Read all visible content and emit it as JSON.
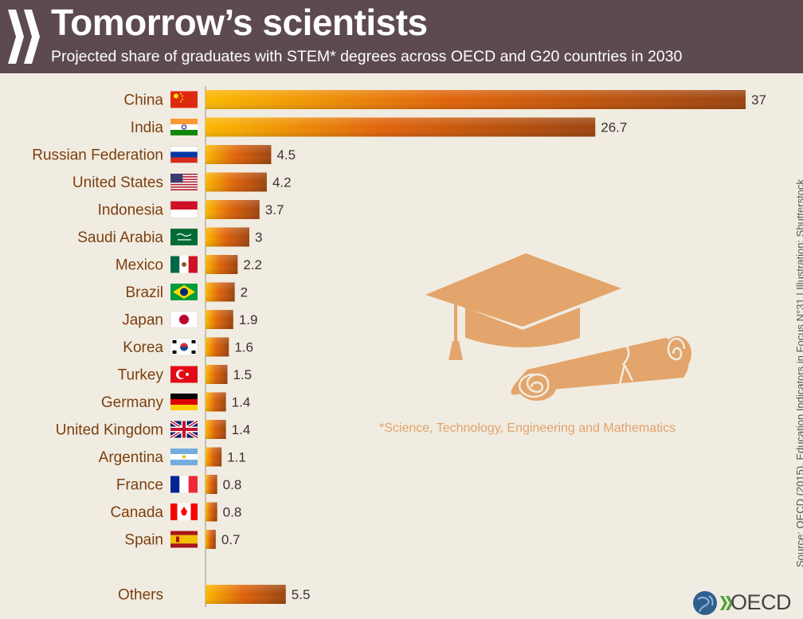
{
  "header": {
    "title": "Tomorrow’s scientists",
    "subtitle": "Projected share of graduates with STEM* degrees across OECD and G20 countries in 2030"
  },
  "note": "*Science, Technology, Engineering and Mathematics",
  "source": "Source: OECD (2015), Education Indicators in Focus N°31 | Illustration: Shutterstock",
  "logo": {
    "text": "OECD"
  },
  "colors": {
    "header_bg": "#5d4a4f",
    "page_bg": "#f1ece1",
    "bar_start": "#fbb800",
    "bar_mid": "#e0640a",
    "bar_end": "#9c4410",
    "label_color": "#7b3f10",
    "illustration": "#e3a56b"
  },
  "chart_data": {
    "type": "bar",
    "orientation": "horizontal",
    "categories": [
      "China",
      "India",
      "Russian Federation",
      "United States",
      "Indonesia",
      "Saudi Arabia",
      "Mexico",
      "Brazil",
      "Japan",
      "Korea",
      "Turkey",
      "Germany",
      "United Kingdom",
      "Argentina",
      "France",
      "Canada",
      "Spain",
      "Others"
    ],
    "values": [
      37,
      26.7,
      4.5,
      4.2,
      3.7,
      3,
      2.2,
      2,
      1.9,
      1.6,
      1.5,
      1.4,
      1.4,
      1.1,
      0.8,
      0.8,
      0.7,
      5.5
    ],
    "value_labels": [
      "37",
      "26.7",
      "4.5",
      "4.2",
      "3.7",
      "3",
      "2.2",
      "2",
      "1.9",
      "1.6",
      "1.5",
      "1.4",
      "1.4",
      "1.1",
      "0.8",
      "0.8",
      "0.7",
      "5.5"
    ],
    "flags": [
      "china-flag-icon",
      "india-flag-icon",
      "russia-flag-icon",
      "usa-flag-icon",
      "indonesia-flag-icon",
      "saudi-arabia-flag-icon",
      "mexico-flag-icon",
      "brazil-flag-icon",
      "japan-flag-icon",
      "korea-flag-icon",
      "turkey-flag-icon",
      "germany-flag-icon",
      "uk-flag-icon",
      "argentina-flag-icon",
      "france-flag-icon",
      "canada-flag-icon",
      "spain-flag-icon",
      ""
    ],
    "xlim": [
      0,
      37
    ],
    "grid": false,
    "legend": "none"
  }
}
